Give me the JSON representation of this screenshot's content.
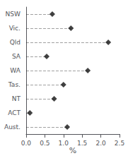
{
  "chart_data": {
    "type": "lollipop",
    "orientation": "horizontal",
    "categories": [
      "NSW",
      "Vic.",
      "Qld",
      "SA",
      "WA",
      "Tas.",
      "NT",
      "ACT",
      "Aust."
    ],
    "values": [
      0.7,
      1.2,
      2.2,
      0.55,
      1.65,
      1.0,
      0.75,
      0.1,
      1.1
    ],
    "xlabel": "%",
    "xlim": [
      0.0,
      2.5
    ],
    "xticks": [
      {
        "value": 0,
        "label": "0.0"
      },
      0.5,
      {
        "value": 1,
        "label": "1.0"
      },
      1.5,
      {
        "value": 2,
        "label": "2.0"
      },
      2.5
    ],
    "marker": "diamond",
    "color": "#111111",
    "line_style": "dashed",
    "grid": false
  }
}
